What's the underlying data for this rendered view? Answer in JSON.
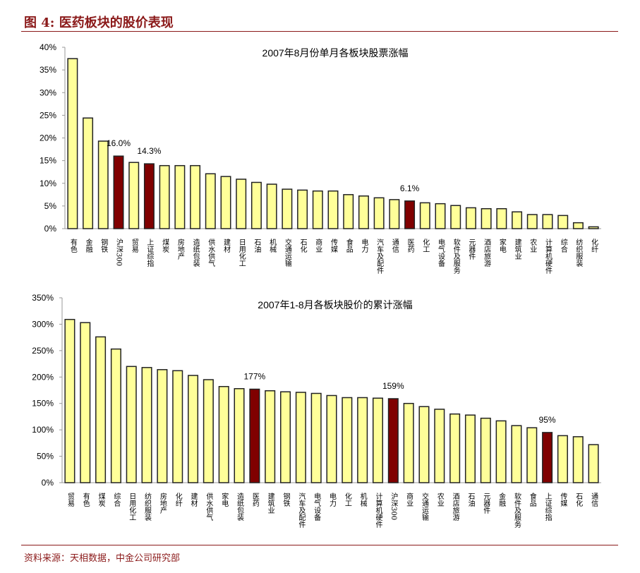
{
  "header": {
    "title": "图 4:  医药板块的股价表现"
  },
  "footer": {
    "source": "资料来源：天相数据，中金公司研究部"
  },
  "colors": {
    "bar": "#ffff99",
    "highlight": "#800000",
    "header": "#8b1a1a"
  },
  "chart_data": [
    {
      "type": "bar",
      "title": "2007年8月份单月各板块股票涨幅",
      "ylim": [
        0,
        40
      ],
      "yticks": [
        "0%",
        "5%",
        "10%",
        "15%",
        "20%",
        "25%",
        "30%",
        "35%",
        "40%"
      ],
      "yunit": "%",
      "categories": [
        "有色",
        "金融",
        "钢铁",
        "沪深300",
        "贸易",
        "上证综指",
        "煤炭",
        "房地产",
        "造纸包装",
        "供水供气",
        "建材",
        "日用化工",
        "石油",
        "机械",
        "交通运输",
        "石化",
        "商业",
        "传媒",
        "食品",
        "电力",
        "汽车及配件",
        "通信",
        "医药",
        "化工",
        "电气设备",
        "软件及服务",
        "元器件",
        "酒店旅游",
        "家电",
        "建筑业",
        "农业",
        "计算机硬件",
        "综合",
        "纺织服装",
        "化纤"
      ],
      "values": [
        37.5,
        24.4,
        19.3,
        16.0,
        14.6,
        14.3,
        13.9,
        13.9,
        13.9,
        12.1,
        11.5,
        10.9,
        10.2,
        9.8,
        8.7,
        8.5,
        8.3,
        8.3,
        7.5,
        7.2,
        6.8,
        6.4,
        6.1,
        5.7,
        5.5,
        5.1,
        4.6,
        4.4,
        4.4,
        3.7,
        3.1,
        3.1,
        2.9,
        1.3,
        0.4
      ],
      "highlighted": [
        "沪深300",
        "上证综指",
        "医药"
      ],
      "data_labels": [
        {
          "category": "沪深300",
          "text": "16.0%"
        },
        {
          "category": "上证综指",
          "text": "14.3%"
        },
        {
          "category": "医药",
          "text": "6.1%"
        }
      ]
    },
    {
      "type": "bar",
      "title": "2007年1-8月各板块股价的累计涨幅",
      "ylim": [
        0,
        350
      ],
      "yticks": [
        "0%",
        "50%",
        "100%",
        "150%",
        "200%",
        "250%",
        "300%",
        "350%"
      ],
      "yunit": "%",
      "categories": [
        "贸易",
        "有色",
        "煤炭",
        "综合",
        "日用化工",
        "纺织服装",
        "房地产",
        "化纤",
        "建材",
        "供水供气",
        "家电",
        "造纸包装",
        "医药",
        "建筑业",
        "钢铁",
        "汽车及配件",
        "电气设备",
        "电力",
        "化工",
        "机械",
        "计算机硬件",
        "沪深300",
        "商业",
        "交通运输",
        "农业",
        "酒店旅游",
        "石油",
        "元器件",
        "金融",
        "软件及服务",
        "食品",
        "上证综指",
        "传媒",
        "石化",
        "通信"
      ],
      "values": [
        309,
        303,
        276,
        253,
        220,
        218,
        214,
        212,
        203,
        195,
        182,
        178,
        177,
        174,
        172,
        171,
        169,
        165,
        161,
        161,
        160,
        159,
        150,
        144,
        139,
        130,
        128,
        122,
        117,
        108,
        104,
        95,
        89,
        87,
        72
      ],
      "highlighted": [
        "医药",
        "沪深300",
        "上证综指"
      ],
      "data_labels": [
        {
          "category": "医药",
          "text": "177%"
        },
        {
          "category": "沪深300",
          "text": "159%"
        },
        {
          "category": "上证综指",
          "text": "95%"
        }
      ]
    }
  ]
}
